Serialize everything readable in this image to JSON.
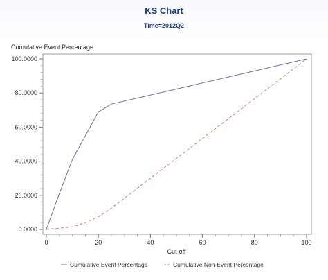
{
  "chart_data": {
    "type": "line",
    "title": "KS Chart",
    "subtitle": "Time=2012Q2",
    "ylabel": "Cumulative Event Percentage",
    "xlabel": "Cut-off",
    "xlim": [
      0,
      100
    ],
    "ylim": [
      0,
      100
    ],
    "x_ticks": [
      0,
      20,
      40,
      60,
      80,
      100
    ],
    "x_tick_labels": [
      "0",
      "20",
      "40",
      "60",
      "80",
      "100"
    ],
    "y_ticks": [
      0,
      20,
      40,
      60,
      80,
      100
    ],
    "y_tick_labels": [
      "0.0000",
      "20.0000",
      "40.0000",
      "60.0000",
      "80.0000",
      "100.0000"
    ],
    "grid": false,
    "legend_position": "bottom",
    "series": [
      {
        "name": "Cumulative Event Percentage",
        "color": "#6b6fa3",
        "dash": "solid",
        "x": [
          0,
          5,
          10,
          15,
          20,
          25,
          100
        ],
        "y": [
          0,
          21,
          41,
          55,
          69,
          73.5,
          100
        ]
      },
      {
        "name": "Cumulative Non-Event Percentage",
        "color": "#c7846e",
        "dash": "dashed",
        "x": [
          0,
          10,
          15,
          20,
          25,
          100
        ],
        "y": [
          0,
          1.5,
          4,
          7.5,
          12.5,
          100
        ]
      }
    ]
  }
}
